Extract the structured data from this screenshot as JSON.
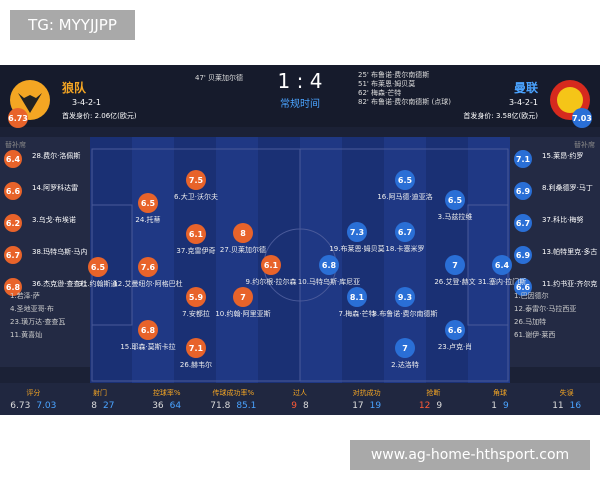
{
  "watermark_top": "TG: MYYJJPP",
  "watermark_bottom": "www.ag-home-hthsport.com",
  "home": {
    "name": "狼队",
    "formation": "3-4-2-1",
    "value": "首发身价: 2.06亿(欧元)",
    "rating": 6.73
  },
  "away": {
    "name": "曼联",
    "formation": "3-4-2-1",
    "value": "首发身价: 3.58亿(欧元)",
    "rating": 7.03
  },
  "match": {
    "score": "1 : 4",
    "status": "常规时间",
    "home_events": [
      "47' 贝莱加尔德"
    ],
    "away_events": [
      "25' 布鲁诺·费尔南德斯",
      "51' 布莱恩·姆贝莫",
      "62' 梅森·芒特",
      "82' 布鲁诺·费尔南德斯 (点球)"
    ]
  },
  "bench_label": "替补席",
  "home_bench": {
    "rated": [
      {
        "rating": 6.4,
        "name": "28.费尔·洛佩斯"
      },
      {
        "rating": 6.6,
        "name": "14.阿罗科达雷"
      },
      {
        "rating": 6.2,
        "name": "3.乌戈·布埃诺"
      },
      {
        "rating": 6.7,
        "name": "38.玛特乌斯·马内"
      },
      {
        "rating": 6.8,
        "name": "36.杰克逊·查查杜"
      }
    ],
    "unused": [
      "1.若泽·萨",
      "4.圣地亚哥·布",
      "23.璜万达·查查瓦",
      "11.黄喜灿"
    ]
  },
  "away_bench": {
    "rated": [
      {
        "rating": 7.1,
        "name": "15.莱昂·约罗"
      },
      {
        "rating": 6.9,
        "name": "8.利桑德罗·马丁"
      },
      {
        "rating": 6.7,
        "name": "37.科比·梅努"
      },
      {
        "rating": 6.9,
        "name": "13.帕特里克·多古"
      },
      {
        "rating": 6.6,
        "name": "11.约书亚·齐尔克"
      }
    ],
    "unused": [
      "1.巴因德尔",
      "12.泰雷尔·马拉西亚",
      "26.马加特",
      "61.谢伊·莱西"
    ]
  },
  "home_players": [
    {
      "rating": 6.5,
      "name": "31.约翰斯通"
    },
    {
      "rating": 7.6,
      "name": "12.艾曼纽尔·阿格巴杜"
    },
    {
      "rating": 6.5,
      "name": "24.托蒂"
    },
    {
      "rating": 6.8,
      "name": "15.耶森·莫斯卡拉"
    },
    {
      "rating": 7.5,
      "name": "6.大卫·沃尔夫"
    },
    {
      "rating": 6.1,
      "name": "37.克雷伊奇"
    },
    {
      "rating": 5.9,
      "name": "7.安都拉"
    },
    {
      "rating": 7.1,
      "name": "26.赫韦尔"
    },
    {
      "rating": 8,
      "name": "27.贝莱加尔德"
    },
    {
      "rating": 7,
      "name": "10.约翰·阿里亚斯"
    },
    {
      "rating": 6.1,
      "name": "9.约尔根·拉尔森"
    }
  ],
  "away_players": [
    {
      "rating": 6.4,
      "name": "31.塞内·拉门斯"
    },
    {
      "rating": 7,
      "name": "26.艾登·赫文"
    },
    {
      "rating": 6.5,
      "name": "3.马兹拉维"
    },
    {
      "rating": 6.6,
      "name": "23.卢克·肖"
    },
    {
      "rating": 6.5,
      "name": "16.阿马德·迪亚洛"
    },
    {
      "rating": 6.7,
      "name": "18.卡塞米罗"
    },
    {
      "rating": 9.3,
      "name": "8.布鲁诺·费尔南德斯"
    },
    {
      "rating": 7,
      "name": "2.达洛特"
    },
    {
      "rating": 7.3,
      "name": "19.布莱恩·姆贝莫"
    },
    {
      "rating": 8.1,
      "name": "7.梅森·芒特"
    },
    {
      "rating": 6.8,
      "name": "10.马特乌斯·库尼亚"
    }
  ],
  "stats": [
    {
      "label": "评分",
      "home": 6.73,
      "away": 7.03
    },
    {
      "label": "射门",
      "home": 8,
      "away": 27
    },
    {
      "label": "控球率%",
      "home": 36,
      "away": 64
    },
    {
      "label": "传球成功率%",
      "home": 71.8,
      "away": 85.1
    },
    {
      "label": "过人",
      "home": 9,
      "away": 8
    },
    {
      "label": "对抗成功",
      "home": 17,
      "away": 19
    },
    {
      "label": "抢断",
      "home": 12,
      "away": 9
    },
    {
      "label": "角球",
      "home": 1,
      "away": 9
    },
    {
      "label": "失误",
      "home": 11,
      "away": 16
    }
  ]
}
